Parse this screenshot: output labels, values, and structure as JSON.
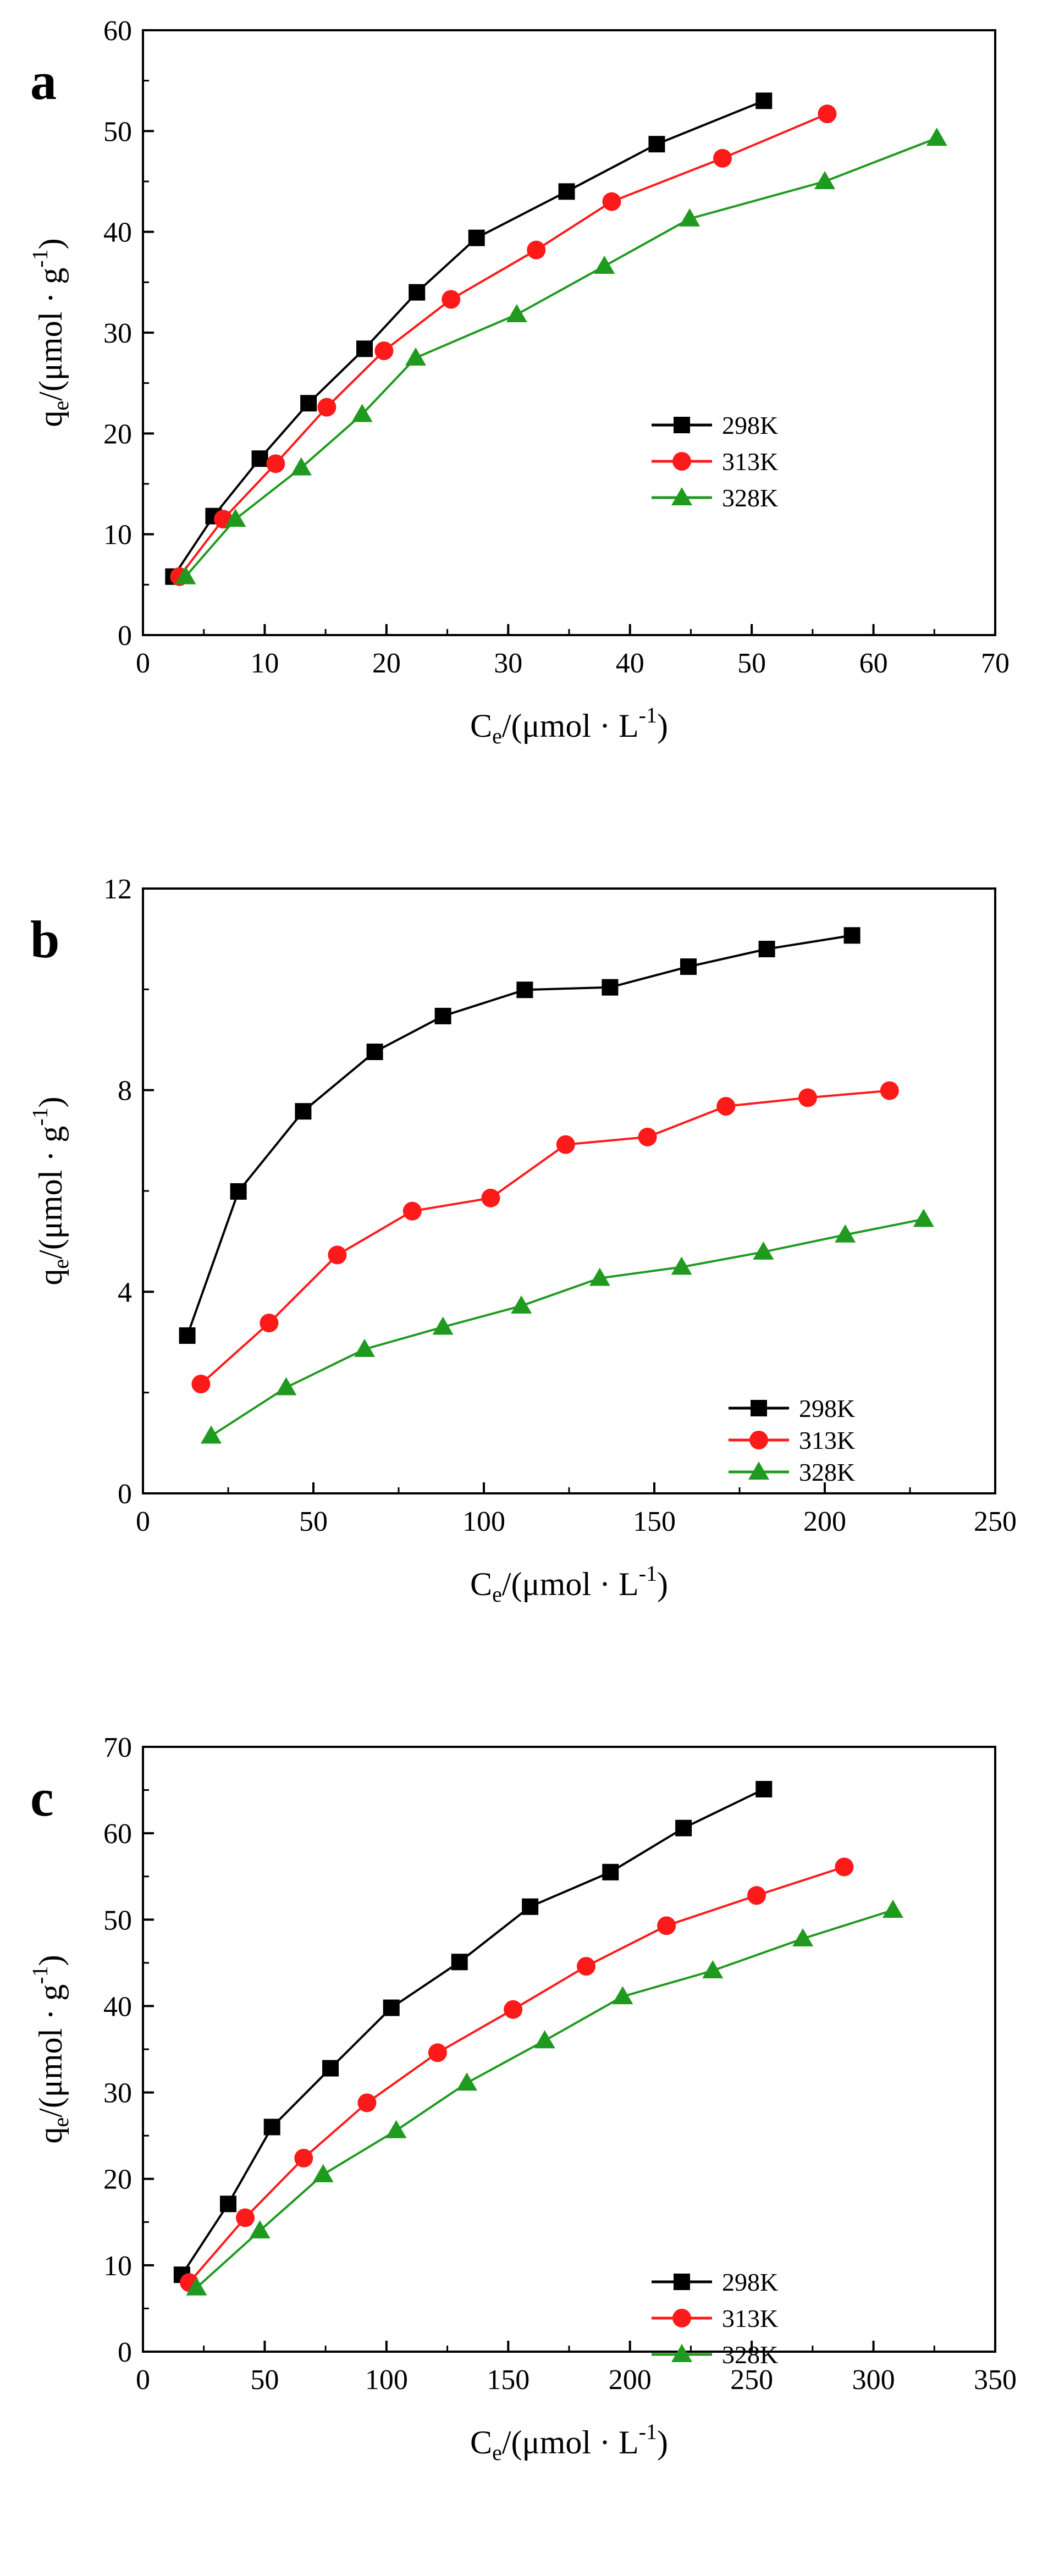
{
  "colors": {
    "s298": "#000000",
    "s313": "#ff1a1a",
    "s328": "#1f9a1f",
    "axis": "#000000"
  },
  "chart_data": [
    {
      "panel": "a",
      "type": "line",
      "xlabel_prefix": "C",
      "xlabel_sub": "e",
      "xlabel_unit": "/(μmol · L",
      "xlabel_sup": "-1",
      "xlabel_end": ")",
      "ylabel_prefix": "q",
      "ylabel_sub": "e",
      "ylabel_unit": "/(μmol · g",
      "ylabel_sup": "-1",
      "ylabel_end": ")",
      "xlim": [
        0,
        70
      ],
      "ylim": [
        0,
        60
      ],
      "xticks": [
        "0",
        "10",
        "20",
        "30",
        "40",
        "50",
        "60",
        "70"
      ],
      "yticks": [
        "0",
        "10",
        "20",
        "30",
        "40",
        "50",
        "60"
      ],
      "legend_position": "center-right",
      "series": [
        {
          "name": "298K",
          "marker": "square",
          "x": [
            2.5,
            5.8,
            9.6,
            13.6,
            18.2,
            22.5,
            27.4,
            34.8,
            42.2,
            51.0
          ],
          "y": [
            5.8,
            11.8,
            17.5,
            23.0,
            28.4,
            34.0,
            39.4,
            44.0,
            48.7,
            53.0
          ]
        },
        {
          "name": "313K",
          "marker": "circle",
          "x": [
            3.0,
            6.6,
            10.9,
            15.1,
            19.8,
            25.3,
            32.3,
            38.5,
            47.6,
            56.2
          ],
          "y": [
            5.8,
            11.5,
            17.0,
            22.6,
            28.2,
            33.3,
            38.2,
            43.0,
            47.3,
            51.7
          ]
        },
        {
          "name": "328K",
          "marker": "triangle",
          "x": [
            3.5,
            7.6,
            13.0,
            18.0,
            22.4,
            30.7,
            37.9,
            44.9,
            56.0,
            65.2
          ],
          "y": [
            5.8,
            11.5,
            16.6,
            21.9,
            27.5,
            31.8,
            36.6,
            41.3,
            45.0,
            49.3
          ]
        }
      ]
    },
    {
      "panel": "b",
      "type": "line",
      "xlabel_prefix": "C",
      "xlabel_sub": "e",
      "xlabel_unit": "/(μmol · L",
      "xlabel_sup": "-1",
      "xlabel_end": ")",
      "ylabel_prefix": "q",
      "ylabel_sub": "e",
      "ylabel_unit": "/(μmol · g",
      "ylabel_sup": "-1",
      "ylabel_end": ")",
      "xlim": [
        0,
        250
      ],
      "ylim": [
        0,
        12
      ],
      "xticks": [
        "0",
        "50",
        "100",
        "150",
        "200",
        "250"
      ],
      "yticks": [
        "0",
        "4",
        "8",
        "12"
      ],
      "legend_position": "bottom-right",
      "series": [
        {
          "name": "298K",
          "marker": "square",
          "x": [
            13,
            28,
            47,
            68,
            88,
            112,
            137,
            160,
            183,
            208
          ],
          "y": [
            3.13,
            5.99,
            7.58,
            8.76,
            9.47,
            9.99,
            10.04,
            10.45,
            10.8,
            11.07
          ]
        },
        {
          "name": "313K",
          "marker": "circle",
          "x": [
            17,
            37,
            57,
            79,
            102,
            124,
            148,
            171,
            195,
            219
          ],
          "y": [
            2.17,
            3.38,
            4.73,
            5.6,
            5.86,
            6.92,
            7.07,
            7.68,
            7.85,
            7.99
          ]
        },
        {
          "name": "328K",
          "marker": "triangle",
          "x": [
            20,
            42,
            65,
            88,
            111,
            134,
            158,
            182,
            206,
            229
          ],
          "y": [
            1.14,
            2.1,
            2.86,
            3.3,
            3.72,
            4.27,
            4.49,
            4.79,
            5.13,
            5.44
          ]
        }
      ]
    },
    {
      "panel": "c",
      "type": "line",
      "xlabel_prefix": "C",
      "xlabel_sub": "e",
      "xlabel_unit": "/(μmol · L",
      "xlabel_sup": "-1",
      "xlabel_end": ")",
      "ylabel_prefix": "q",
      "ylabel_sub": "e",
      "ylabel_unit": "/(μmol · g",
      "ylabel_sup": "-1",
      "ylabel_end": ")",
      "xlim": [
        0,
        350
      ],
      "ylim": [
        0,
        70
      ],
      "xticks": [
        "0",
        "50",
        "100",
        "150",
        "200",
        "250",
        "300",
        "350"
      ],
      "yticks": [
        "0",
        "10",
        "20",
        "30",
        "40",
        "50",
        "60",
        "70"
      ],
      "legend_position": "center-right",
      "series": [
        {
          "name": "298K",
          "marker": "square",
          "x": [
            16,
            35,
            53,
            77,
            102,
            130,
            159,
            192,
            222,
            255
          ],
          "y": [
            8.9,
            17.1,
            26.0,
            32.8,
            39.8,
            45.1,
            51.5,
            55.5,
            60.6,
            65.1
          ]
        },
        {
          "name": "313K",
          "marker": "circle",
          "x": [
            19,
            42,
            66,
            92,
            121,
            152,
            182,
            215,
            252,
            288
          ],
          "y": [
            8.0,
            15.5,
            22.4,
            28.8,
            34.6,
            39.6,
            44.6,
            49.3,
            52.8,
            56.1
          ]
        },
        {
          "name": "328K",
          "marker": "triangle",
          "x": [
            22,
            48,
            74,
            104,
            133,
            165,
            197,
            234,
            271,
            308
          ],
          "y": [
            7.4,
            14.0,
            20.5,
            25.6,
            31.1,
            36.0,
            41.1,
            44.1,
            47.8,
            51.1
          ]
        }
      ]
    }
  ]
}
